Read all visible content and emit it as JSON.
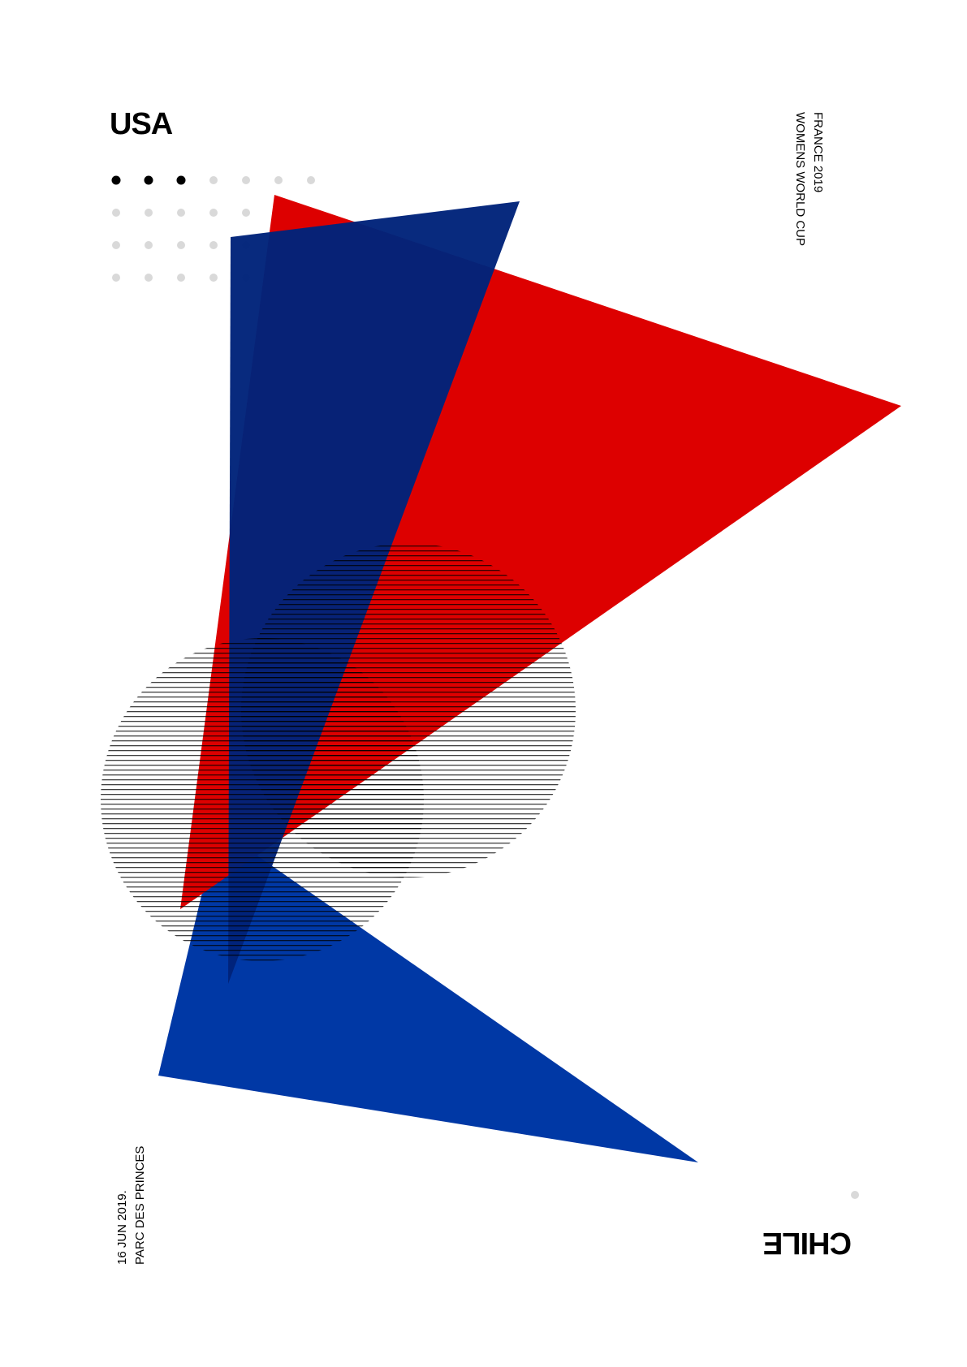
{
  "poster": {
    "home_team": "USA",
    "away_team": "CHILE",
    "event_line1": "FRANCE 2019",
    "event_line2": "WOMENS WORLD CUP",
    "date_line": "16 JUN 2019.",
    "venue_line": "PARC DES PRINCES"
  },
  "score_dots": {
    "home_goals_filled": 3,
    "grid_columns": 7
  },
  "colors": {
    "red": "#dd0000",
    "navy": "#00237a",
    "blue": "#0038a5",
    "dot_active": "#000000",
    "dot_inactive": "#d9d9d9",
    "stripe": "#000000"
  }
}
